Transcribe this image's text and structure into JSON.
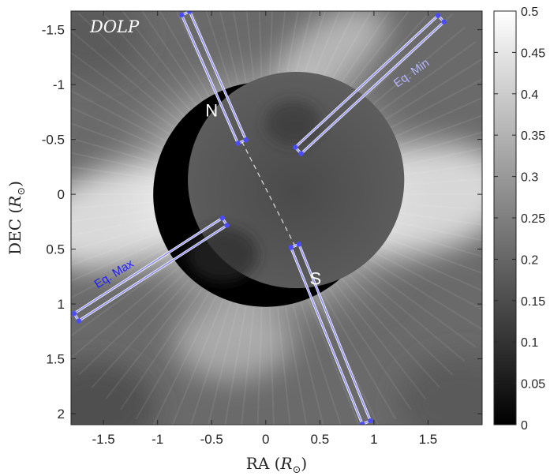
{
  "chart_data": {
    "type": "heatmap",
    "title": "DOLP",
    "xlabel": "RA",
    "ylabel": "DEC",
    "unit_symbol": "R",
    "unit_subscript": "⊙",
    "xlim": [
      -1.8,
      2.0
    ],
    "ylim": [
      2.1,
      -1.67
    ],
    "y_reversed": true,
    "x_ticks": [
      -1.5,
      -1,
      -0.5,
      0,
      0.5,
      1,
      1.5
    ],
    "x_tick_labels": [
      "-1.5",
      "-1",
      "-0.5",
      "0",
      "0.5",
      "1",
      "1.5"
    ],
    "y_ticks": [
      -1.5,
      -1,
      -0.5,
      0,
      0.5,
      1,
      1.5,
      2
    ],
    "y_tick_labels": [
      "-1.5",
      "-1",
      "-0.5",
      "0",
      "0.5",
      "1",
      "1.5",
      "2"
    ],
    "colorbar": {
      "colormap": "gray",
      "range": [
        0,
        0.5
      ],
      "ticks": [
        0,
        0.05,
        0.1,
        0.15,
        0.2,
        0.25,
        0.3,
        0.35,
        0.4,
        0.45,
        0.5
      ],
      "tick_labels": [
        "0",
        "0.05",
        "0.1",
        "0.15",
        "0.2",
        "0.25",
        "0.3",
        "0.35",
        "0.4",
        "0.45",
        "0.5"
      ]
    },
    "occulter": {
      "center": [
        0.0,
        0.0
      ],
      "radius": 1.0
    },
    "moon_disk": {
      "center": [
        0.28,
        -0.13
      ],
      "radius": 1.0
    },
    "axis_line": {
      "from": [
        -0.22,
        -0.48
      ],
      "to": [
        0.27,
        0.47
      ],
      "style": "dashed",
      "color": "#dddddd"
    },
    "regions": [
      {
        "id": "north",
        "label": "N",
        "label_pos": [
          -0.5,
          -0.75
        ],
        "inner": [
          -0.22,
          -0.48
        ],
        "outer": [
          -0.74,
          -1.65
        ],
        "halfwidth": 0.04,
        "color": "#8f8fff",
        "label_color": "#ffffff",
        "label_rotation": 0
      },
      {
        "id": "south",
        "label": "S",
        "label_pos": [
          0.46,
          0.78
        ],
        "inner": [
          0.27,
          0.47
        ],
        "outer": [
          0.93,
          2.08
        ],
        "halfwidth": 0.04,
        "color": "#8f8fff",
        "label_color": "#ffffff",
        "label_rotation": 0
      },
      {
        "id": "eq-min",
        "label": "Eq. Min",
        "label_pos": [
          1.35,
          -1.1
        ],
        "inner": [
          0.3,
          -0.4
        ],
        "outer": [
          1.62,
          -1.6
        ],
        "halfwidth": 0.04,
        "color": "#8f8fff",
        "label_color": "#b3b3ff",
        "label_rotation": -35
      },
      {
        "id": "eq-max",
        "label": "Eq. Max",
        "label_pos": [
          -1.4,
          0.73
        ],
        "inner": [
          -0.38,
          0.25
        ],
        "outer": [
          -1.75,
          1.12
        ],
        "halfwidth": 0.04,
        "color": "#8f8fff",
        "label_color": "#1e1eff",
        "label_rotation": -32
      }
    ]
  }
}
